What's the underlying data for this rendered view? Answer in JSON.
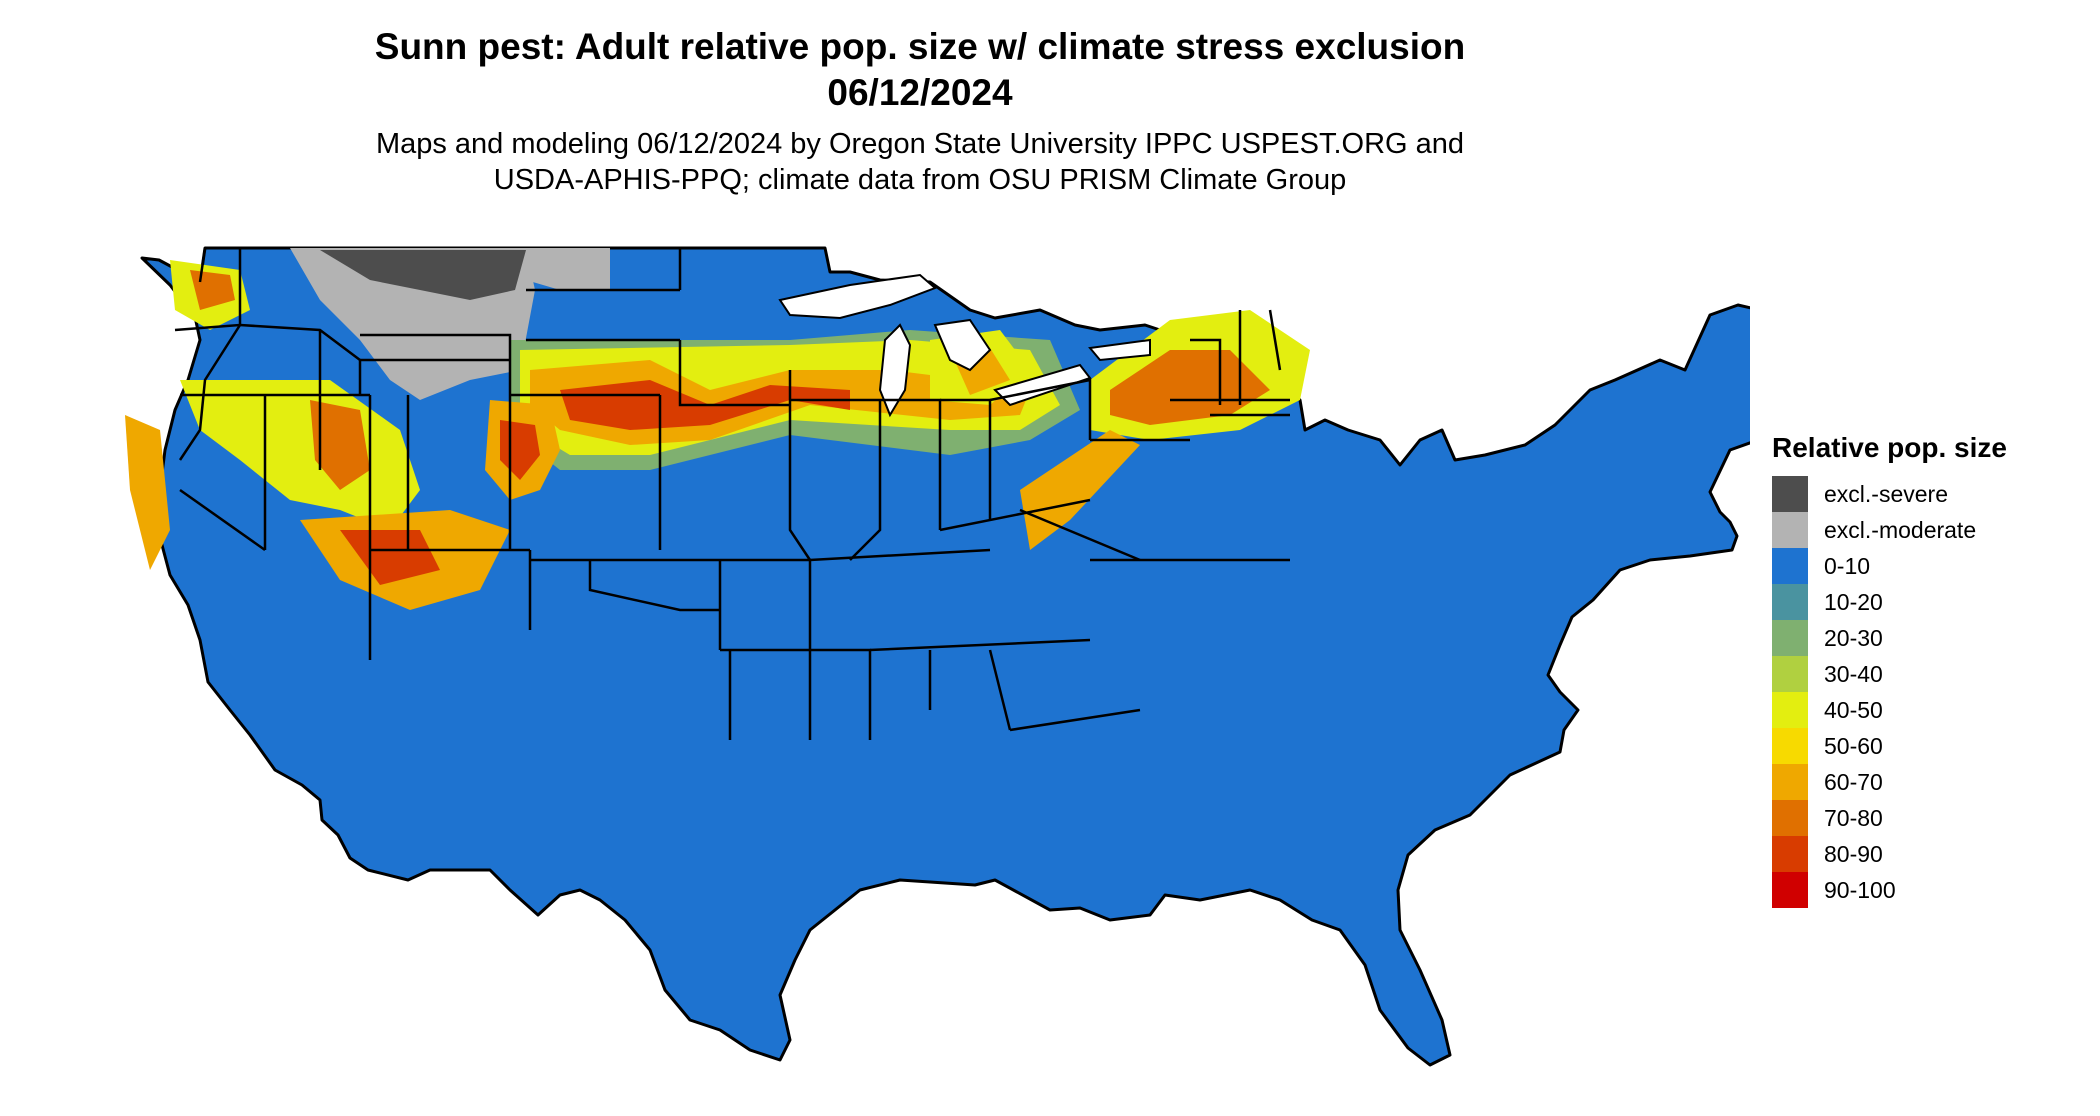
{
  "header": {
    "title_line1": "Sunn pest: Adult relative pop. size w/ climate stress exclusion",
    "title_line2": "06/12/2024",
    "subtitle_line1": "Maps and modeling 06/12/2024 by Oregon State University IPPC USPEST.ORG and",
    "subtitle_line2": "USDA-APHIS-PPQ; climate data from OSU PRISM Climate Group"
  },
  "legend": {
    "title": "Relative pop. size",
    "items": [
      {
        "label": "excl.-severe",
        "color": "#4d4d4d"
      },
      {
        "label": "excl.-moderate",
        "color": "#b3b3b3"
      },
      {
        "label": "0-10",
        "color": "#1e73d0"
      },
      {
        "label": "10-20",
        "color": "#4a93a0"
      },
      {
        "label": "20-30",
        "color": "#7fb070"
      },
      {
        "label": "30-40",
        "color": "#b0d040"
      },
      {
        "label": "40-50",
        "color": "#e3ee10"
      },
      {
        "label": "50-60",
        "color": "#f7da00"
      },
      {
        "label": "60-70",
        "color": "#efa800"
      },
      {
        "label": "70-80",
        "color": "#e07000"
      },
      {
        "label": "80-90",
        "color": "#d83c00"
      },
      {
        "label": "90-100",
        "color": "#d00000"
      }
    ]
  },
  "map": {
    "base_color": "#1e73d0",
    "outline_color": "#000000"
  }
}
